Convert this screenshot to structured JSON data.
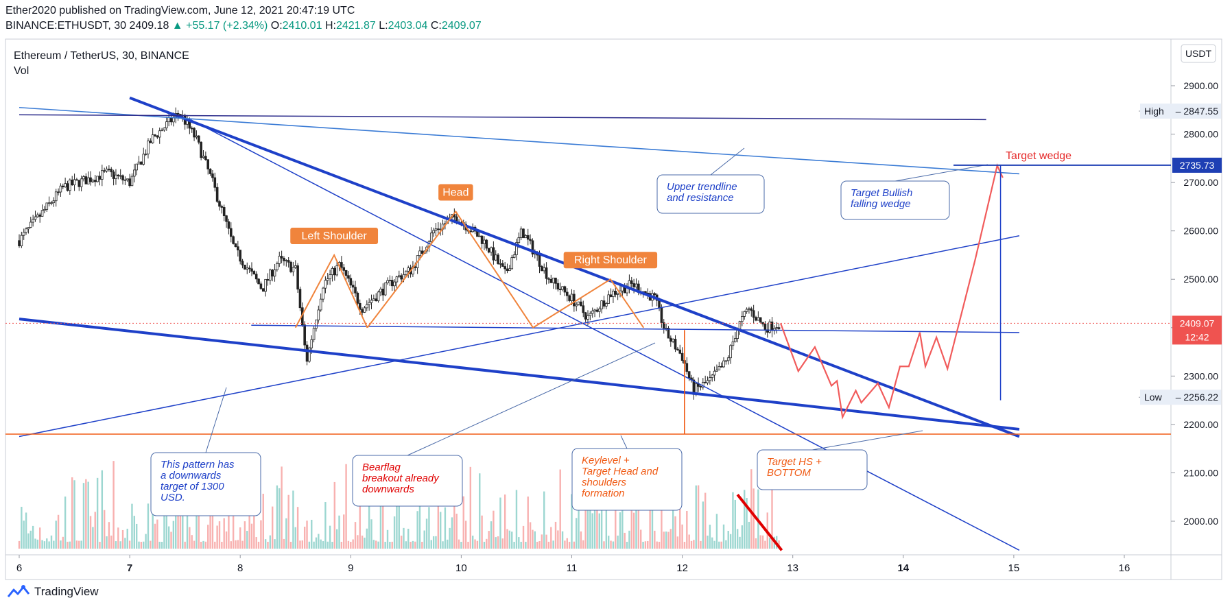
{
  "header": {
    "publisher": "Ether2020 published on TradingView.com, June 12, 2021 20:47:19 UTC",
    "symbol": "BINANCE:ETHUSDT, 30",
    "last": "2409.18",
    "change": "+55.17 (+2.34%)",
    "o_label": "O:",
    "o": "2410.01",
    "h_label": "H:",
    "h": "2421.87",
    "l_label": "L:",
    "l": "2403.04",
    "c_label": "C:",
    "c": "2409.07"
  },
  "legend": {
    "title": "Ethereum / TetherUS, 30, BINANCE",
    "indicator": "Vol"
  },
  "currency_button": "USDT",
  "footer": {
    "brand": "TradingView"
  },
  "colors": {
    "up": "#26a69a",
    "down": "#ef5350",
    "trend": "#1e40c8",
    "trend_light": "#3a7bd5",
    "pattern": "#f0843c",
    "keylevel": "#f05a14",
    "projection": "#f15b5b",
    "price_tag": "#ef5350",
    "target_tag": "#1e3fb4"
  },
  "chart_data": {
    "type": "candlestick",
    "x_ticks": [
      "6",
      "7",
      "8",
      "9",
      "10",
      "11",
      "12",
      "13",
      "14",
      "15",
      "16"
    ],
    "y_ticks": [
      "2900.00",
      "2800.00",
      "2700.00",
      "2600.00",
      "2500.00",
      "2400.00",
      "2300.00",
      "2200.00",
      "2100.00",
      "2000.00"
    ],
    "ylim": [
      1935,
      2975
    ],
    "price_path": [
      [
        0,
        2580
      ],
      [
        0.4,
        2690
      ],
      [
        0.8,
        2720
      ],
      [
        1.0,
        2700
      ],
      [
        1.2,
        2790
      ],
      [
        1.45,
        2845
      ],
      [
        1.6,
        2790
      ],
      [
        1.75,
        2700
      ],
      [
        1.95,
        2560
      ],
      [
        2.2,
        2480
      ],
      [
        2.35,
        2540
      ],
      [
        2.5,
        2520
      ],
      [
        2.6,
        2330
      ],
      [
        2.75,
        2490
      ],
      [
        2.9,
        2530
      ],
      [
        3.1,
        2440
      ],
      [
        3.4,
        2500
      ],
      [
        3.55,
        2520
      ],
      [
        3.75,
        2600
      ],
      [
        3.95,
        2630
      ],
      [
        4.2,
        2580
      ],
      [
        4.4,
        2510
      ],
      [
        4.55,
        2600
      ],
      [
        4.8,
        2500
      ],
      [
        5.0,
        2460
      ],
      [
        5.15,
        2420
      ],
      [
        5.35,
        2470
      ],
      [
        5.55,
        2490
      ],
      [
        5.75,
        2460
      ],
      [
        5.85,
        2390
      ],
      [
        6.0,
        2340
      ],
      [
        6.1,
        2270
      ],
      [
        6.25,
        2290
      ],
      [
        6.4,
        2330
      ],
      [
        6.5,
        2400
      ],
      [
        6.6,
        2440
      ],
      [
        6.75,
        2400
      ],
      [
        6.89,
        2409
      ]
    ],
    "levels": [
      {
        "name": "High",
        "value": 2847.55
      },
      {
        "name": "",
        "value": 2735.73
      },
      {
        "name": "",
        "value": 2409.07,
        "countdown": "12:42"
      },
      {
        "name": "Low",
        "value": 2256.22
      }
    ],
    "trendlines": [
      {
        "points": [
          [
            1.0,
            2875
          ],
          [
            9.05,
            2175
          ]
        ],
        "style": "thick"
      },
      {
        "points": [
          [
            0,
            2418
          ],
          [
            9.05,
            2190
          ]
        ],
        "style": "thick"
      },
      {
        "points": [
          [
            0,
            2175
          ],
          [
            9.05,
            2590
          ]
        ],
        "style": "thin"
      },
      {
        "points": [
          [
            1.55,
            2830
          ],
          [
            9.05,
            1940
          ]
        ],
        "style": "thin"
      },
      {
        "points": [
          [
            0,
            2855
          ],
          [
            9.05,
            2718
          ]
        ],
        "style": "light"
      },
      {
        "points": [
          [
            0,
            2840
          ],
          [
            8.75,
            2830
          ]
        ],
        "style": "dark"
      },
      {
        "points": [
          [
            2.1,
            2405
          ],
          [
            9.05,
            2390
          ]
        ],
        "style": "thin"
      }
    ],
    "keylevel": 2180,
    "projection": [
      [
        6.89,
        2409
      ],
      [
        7.05,
        2310
      ],
      [
        7.2,
        2360
      ],
      [
        7.35,
        2280
      ],
      [
        7.4,
        2290
      ],
      [
        7.45,
        2215
      ],
      [
        7.57,
        2270
      ],
      [
        7.62,
        2245
      ],
      [
        7.77,
        2285
      ],
      [
        7.87,
        2235
      ],
      [
        7.97,
        2320
      ],
      [
        8.05,
        2320
      ],
      [
        8.15,
        2390
      ],
      [
        8.2,
        2320
      ],
      [
        8.3,
        2380
      ],
      [
        8.4,
        2315
      ],
      [
        8.65,
        2540
      ],
      [
        8.85,
        2735
      ],
      [
        8.9,
        2710
      ]
    ],
    "patterns": [
      {
        "label": "Left Shoulder",
        "points": [
          [
            2.5,
            2400
          ],
          [
            2.85,
            2550
          ],
          [
            3.15,
            2400
          ]
        ]
      },
      {
        "label": "Head",
        "points": [
          [
            3.15,
            2400
          ],
          [
            3.95,
            2640
          ],
          [
            4.65,
            2400
          ]
        ]
      },
      {
        "label": "Right Shoulder",
        "points": [
          [
            4.65,
            2400
          ],
          [
            5.35,
            2500
          ],
          [
            5.65,
            2400
          ]
        ]
      }
    ],
    "annotations": [
      {
        "text": [
          "Upper trendline",
          "and resistance"
        ],
        "color": "#1e40c8"
      },
      {
        "text": [
          "Target Bullish",
          "falling wedge"
        ],
        "color": "#1e40c8"
      },
      {
        "text": [
          "This pattern has",
          "a downwards",
          "target of 1300",
          "USD."
        ],
        "color": "#1e40c8"
      },
      {
        "text": [
          "Bearflag",
          "breakout already",
          "downwards"
        ],
        "color": "#e00000"
      },
      {
        "text": [
          "Keylevel +",
          "Target Head and",
          "shoulders",
          "formation"
        ],
        "color": "#f05a14"
      },
      {
        "text": [
          "Target HS +",
          "BOTTOM"
        ],
        "color": "#f05a14"
      },
      {
        "text": [
          "Target wedge"
        ],
        "color": "#e52929"
      }
    ]
  }
}
